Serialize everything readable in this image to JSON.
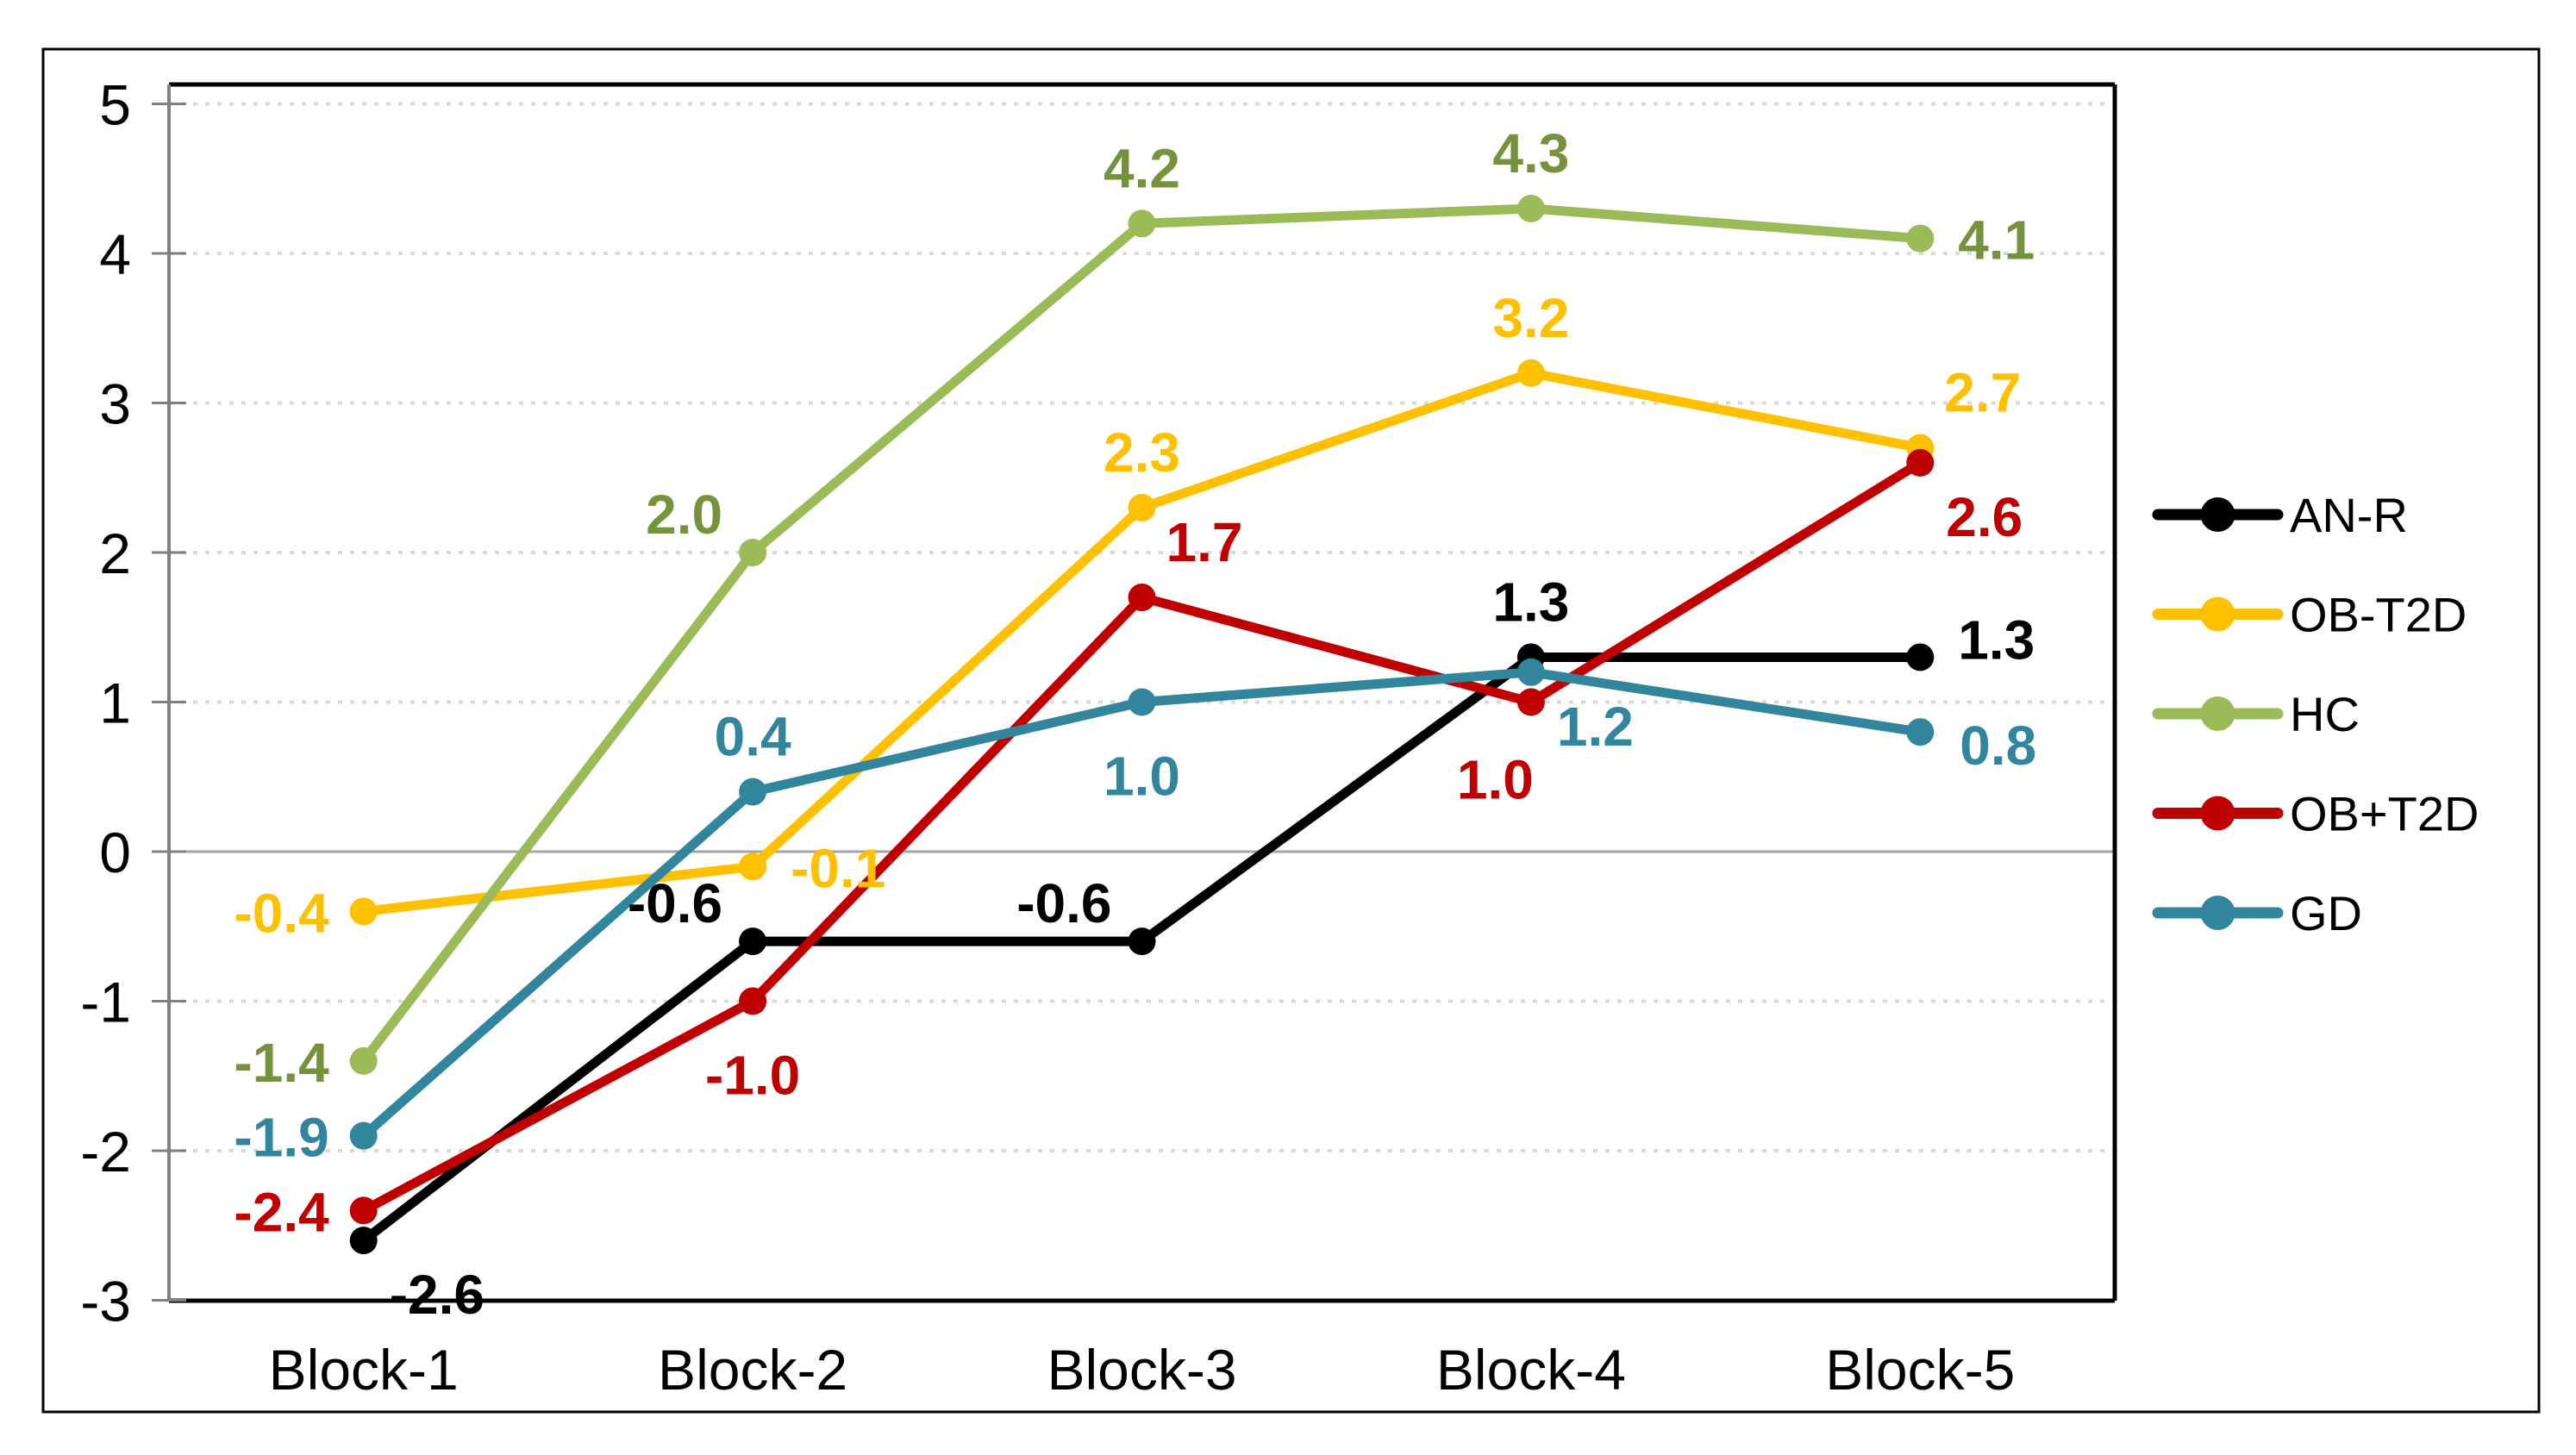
{
  "chart_data": {
    "type": "line",
    "title": "",
    "xlabel": "",
    "ylabel": "",
    "categories": [
      "Block-1",
      "Block-2",
      "Block-3",
      "Block-4",
      "Block-5"
    ],
    "series": [
      {
        "name": "AN-R",
        "color": "#000000",
        "label_color": "#000000",
        "values": [
          -2.6,
          -0.6,
          -0.6,
          1.3,
          1.3
        ],
        "labels": [
          "-2.6",
          "-0.6",
          "-0.6",
          "1.3",
          "1.3"
        ],
        "label_pos": [
          "below-right",
          "above-left",
          "above-left",
          "above",
          "right-high"
        ]
      },
      {
        "name": "OB-T2D",
        "color": "#FFC000",
        "label_color": "#FFC000",
        "values": [
          -0.4,
          -0.1,
          2.3,
          3.2,
          2.7
        ],
        "labels": [
          "-0.4",
          "-0.1",
          "2.3",
          "3.2",
          "2.7"
        ],
        "label_pos": [
          "left",
          "right",
          "above",
          "above",
          "above-right"
        ]
      },
      {
        "name": "HC",
        "color": "#9BBB59",
        "label_color": "#76923C",
        "values": [
          -1.4,
          2.0,
          4.2,
          4.3,
          4.1
        ],
        "labels": [
          "-1.4",
          "2.0",
          "4.2",
          "4.3",
          "4.1"
        ],
        "label_pos": [
          "left",
          "above-left",
          "above",
          "above",
          "right"
        ]
      },
      {
        "name": "OB+T2D",
        "color": "#C00000",
        "label_color": "#C00000",
        "values": [
          -2.4,
          -1.0,
          1.7,
          1.0,
          2.6
        ],
        "labels": [
          "-2.4",
          "-1.0",
          "1.7",
          "1.0",
          "2.6"
        ],
        "label_pos": [
          "left",
          "below",
          "above-right",
          "below-left",
          "below-right"
        ]
      },
      {
        "name": "GD",
        "color": "#31859C",
        "label_color": "#31859C",
        "values": [
          -1.9,
          0.4,
          1.0,
          1.2,
          0.8
        ],
        "labels": [
          "-1.9",
          "0.4",
          "1.0",
          "1.2",
          "0.8"
        ],
        "label_pos": [
          "left",
          "above",
          "below",
          "below-right",
          "right-low"
        ]
      }
    ],
    "y_axis": {
      "min": -3,
      "max": 5,
      "step": 1,
      "tick_labels": [
        "5",
        "4",
        "3",
        "2",
        "1",
        "0",
        "-1",
        "-2",
        "-3"
      ],
      "grid": true
    },
    "legend": {
      "position": "right",
      "entries": [
        "AN-R",
        "OB-T2D",
        "HC",
        "OB+T2D",
        "GD"
      ]
    },
    "colors": {
      "gridline": "#D9D9D9",
      "zero_line": "#A6A6A6",
      "axis_line": "#808080",
      "plot_border": "#000000",
      "outer_border": "#000000",
      "background": "#FFFFFF"
    }
  }
}
